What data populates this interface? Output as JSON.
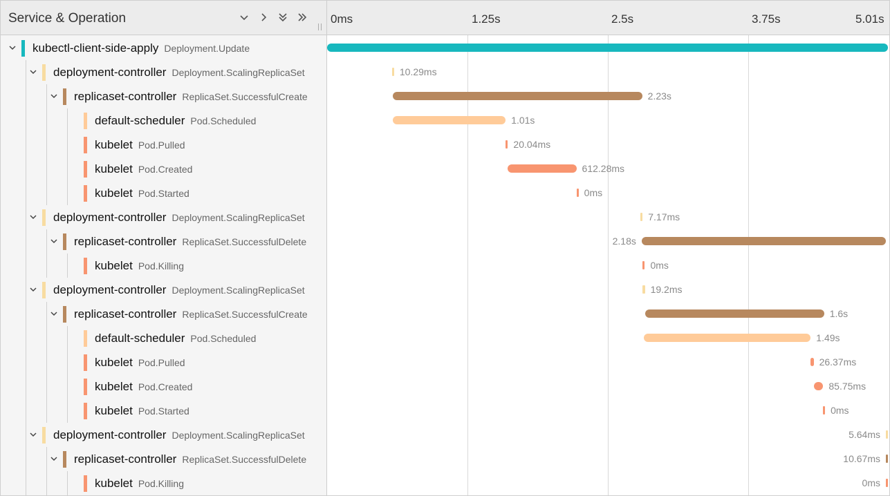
{
  "header": {
    "title": "Service & Operation",
    "ticks": [
      "0ms",
      "1.25s",
      "2.5s",
      "3.75s",
      "5.01s"
    ]
  },
  "colors": {
    "kubectl": "#17b8be",
    "deployment": "#f8dca1",
    "replicaset": "#b7885e",
    "scheduler": "#ffcb99",
    "kubelet": "#f89570"
  },
  "rows": [
    {
      "service": "kubectl-client-side-apply",
      "operation": "Deployment.Update",
      "depth": 0,
      "color": "kubectl",
      "collapsible": true,
      "start_ms": 0,
      "duration_ms": 5010,
      "duration_label": ""
    },
    {
      "service": "deployment-controller",
      "operation": "Deployment.ScalingReplicaSet",
      "depth": 1,
      "color": "deployment",
      "collapsible": true,
      "start_ms": 580,
      "duration_ms": 10.29,
      "duration_label": "10.29ms"
    },
    {
      "service": "replicaset-controller",
      "operation": "ReplicaSet.SuccessfulCreate",
      "depth": 2,
      "color": "replicaset",
      "collapsible": true,
      "start_ms": 585,
      "duration_ms": 2230,
      "duration_label": "2.23s"
    },
    {
      "service": "default-scheduler",
      "operation": "Pod.Scheduled",
      "depth": 3,
      "color": "scheduler",
      "collapsible": false,
      "start_ms": 585,
      "duration_ms": 1010,
      "duration_label": "1.01s"
    },
    {
      "service": "kubelet",
      "operation": "Pod.Pulled",
      "depth": 3,
      "color": "kubelet",
      "collapsible": false,
      "start_ms": 1595,
      "duration_ms": 20.04,
      "duration_label": "20.04ms"
    },
    {
      "service": "kubelet",
      "operation": "Pod.Created",
      "depth": 3,
      "color": "kubelet",
      "collapsible": false,
      "start_ms": 1615,
      "duration_ms": 612.28,
      "duration_label": "612.28ms"
    },
    {
      "service": "kubelet",
      "operation": "Pod.Started",
      "depth": 3,
      "color": "kubelet",
      "collapsible": false,
      "start_ms": 2228,
      "duration_ms": 0,
      "duration_label": "0ms"
    },
    {
      "service": "deployment-controller",
      "operation": "Deployment.ScalingReplicaSet",
      "depth": 1,
      "color": "deployment",
      "collapsible": true,
      "start_ms": 2800,
      "duration_ms": 7.17,
      "duration_label": "7.17ms"
    },
    {
      "service": "replicaset-controller",
      "operation": "ReplicaSet.SuccessfulDelete",
      "depth": 2,
      "color": "replicaset",
      "collapsible": true,
      "start_ms": 2810,
      "duration_ms": 2180,
      "duration_label": "2.18s"
    },
    {
      "service": "kubelet",
      "operation": "Pod.Killing",
      "depth": 3,
      "color": "kubelet",
      "collapsible": false,
      "start_ms": 2820,
      "duration_ms": 0,
      "duration_label": "0ms"
    },
    {
      "service": "deployment-controller",
      "operation": "Deployment.ScalingReplicaSet",
      "depth": 1,
      "color": "deployment",
      "collapsible": true,
      "start_ms": 2820,
      "duration_ms": 19.2,
      "duration_label": "19.2ms"
    },
    {
      "service": "replicaset-controller",
      "operation": "ReplicaSet.SuccessfulCreate",
      "depth": 2,
      "color": "replicaset",
      "collapsible": true,
      "start_ms": 2840,
      "duration_ms": 1600,
      "duration_label": "1.6s"
    },
    {
      "service": "default-scheduler",
      "operation": "Pod.Scheduled",
      "depth": 3,
      "color": "scheduler",
      "collapsible": false,
      "start_ms": 2830,
      "duration_ms": 1490,
      "duration_label": "1.49s"
    },
    {
      "service": "kubelet",
      "operation": "Pod.Pulled",
      "depth": 3,
      "color": "kubelet",
      "collapsible": false,
      "start_ms": 4320,
      "duration_ms": 26.37,
      "duration_label": "26.37ms"
    },
    {
      "service": "kubelet",
      "operation": "Pod.Created",
      "depth": 3,
      "color": "kubelet",
      "collapsible": false,
      "start_ms": 4346,
      "duration_ms": 85.75,
      "duration_label": "85.75ms"
    },
    {
      "service": "kubelet",
      "operation": "Pod.Started",
      "depth": 3,
      "color": "kubelet",
      "collapsible": false,
      "start_ms": 4430,
      "duration_ms": 0,
      "duration_label": "0ms"
    },
    {
      "service": "deployment-controller",
      "operation": "Deployment.ScalingReplicaSet",
      "depth": 1,
      "color": "deployment",
      "collapsible": true,
      "start_ms": 5004,
      "duration_ms": 5.64,
      "duration_label": "5.64ms"
    },
    {
      "service": "replicaset-controller",
      "operation": "ReplicaSet.SuccessfulDelete",
      "depth": 2,
      "color": "replicaset",
      "collapsible": true,
      "start_ms": 4998,
      "duration_ms": 10.67,
      "duration_label": "10.67ms"
    },
    {
      "service": "kubelet",
      "operation": "Pod.Killing",
      "depth": 3,
      "color": "kubelet",
      "collapsible": false,
      "start_ms": 5010,
      "duration_ms": 0,
      "duration_label": "0ms"
    }
  ]
}
